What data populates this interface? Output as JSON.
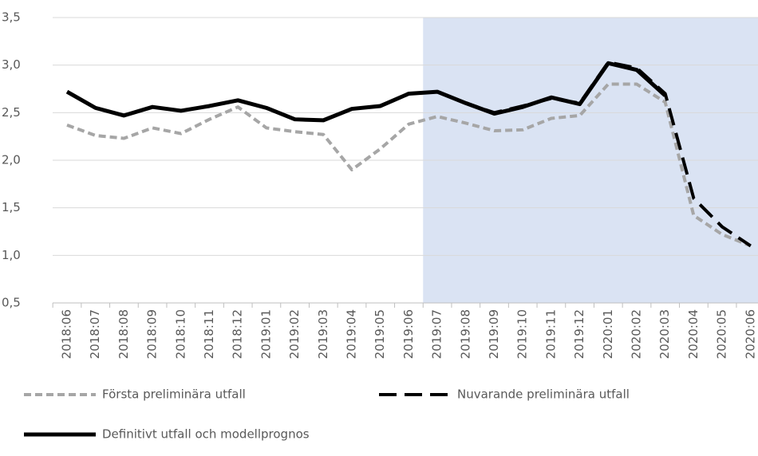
{
  "chart_data": {
    "type": "line",
    "categories": [
      "2018:06",
      "2018:07",
      "2018:08",
      "2018:09",
      "2018:10",
      "2018:11",
      "2018:12",
      "2019:01",
      "2019:02",
      "2019:03",
      "2019:04",
      "2019:05",
      "2019:06",
      "2019:07",
      "2019:08",
      "2019:09",
      "2019:10",
      "2019:11",
      "2019:12",
      "2020:01",
      "2020:02",
      "2020:03",
      "2020:04",
      "2020:05",
      "2020:06"
    ],
    "series": [
      {
        "name": "Första preliminära utfall",
        "color": "#a6a6a6",
        "dash": "short",
        "values": [
          2.37,
          2.26,
          2.23,
          2.34,
          2.28,
          2.43,
          2.56,
          2.34,
          2.3,
          2.27,
          1.9,
          2.12,
          2.38,
          2.46,
          2.39,
          2.31,
          2.32,
          2.44,
          2.47,
          2.8,
          2.8,
          2.61,
          1.42,
          1.22,
          1.1
        ]
      },
      {
        "name": "Nuvarande preliminära utfall",
        "color": "#000000",
        "dash": "long",
        "values": [
          null,
          null,
          null,
          null,
          null,
          null,
          null,
          null,
          null,
          null,
          null,
          null,
          null,
          2.72,
          2.6,
          2.5,
          2.57,
          2.65,
          2.6,
          3.03,
          2.97,
          2.7,
          1.6,
          1.3,
          1.1
        ]
      },
      {
        "name": "Definitivt utfall och modellprognos",
        "color": "#000000",
        "dash": "solid",
        "values": [
          2.72,
          2.55,
          2.47,
          2.56,
          2.52,
          2.57,
          2.63,
          2.55,
          2.43,
          2.42,
          2.54,
          2.57,
          2.7,
          2.72,
          2.6,
          2.49,
          2.56,
          2.66,
          2.59,
          3.02,
          2.95,
          2.68,
          null,
          null,
          null
        ]
      }
    ],
    "shade_from": "2019:07",
    "shade_color": "#dae3f3",
    "ylim": [
      0.5,
      3.5
    ],
    "yticks": [
      {
        "value": 0.5,
        "label": "0,5"
      },
      {
        "value": 1,
        "label": "1,0"
      },
      {
        "value": 1.5,
        "label": "1,5"
      },
      {
        "value": 2,
        "label": "2,0"
      },
      {
        "value": 2.5,
        "label": "2,5"
      },
      {
        "value": 3,
        "label": "3,0"
      },
      {
        "value": 3.5,
        "label": "3,5"
      }
    ],
    "grid": true
  }
}
